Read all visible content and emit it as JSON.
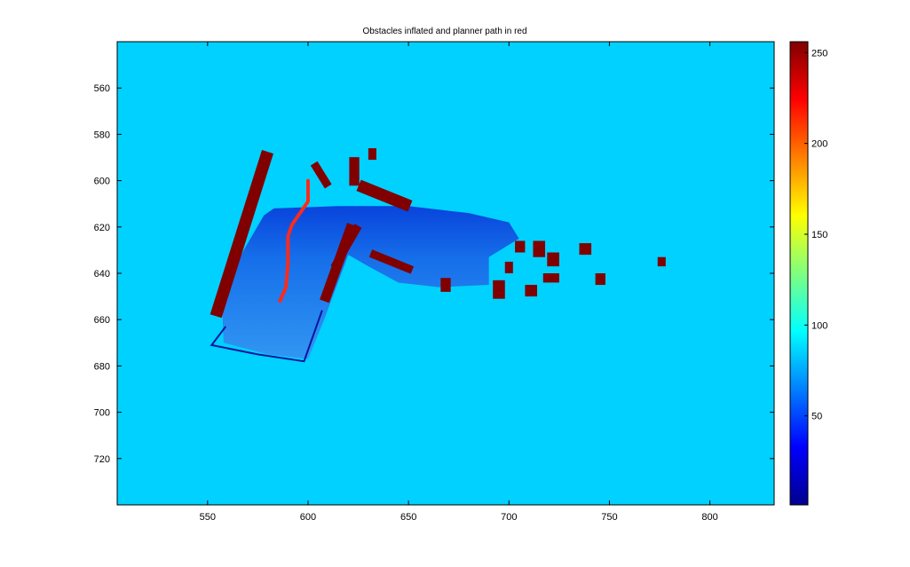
{
  "chart_data": {
    "type": "heatmap",
    "title": "Obstacles inflated and planner path in red",
    "xlabel": "",
    "ylabel": "",
    "xlim": [
      505,
      832
    ],
    "ylim": [
      540,
      740
    ],
    "y_reversed": true,
    "x_ticks": [
      550,
      600,
      650,
      700,
      750,
      800
    ],
    "y_ticks": [
      560,
      580,
      600,
      620,
      640,
      660,
      680,
      700,
      720
    ],
    "colormap": "jet",
    "clim": [
      1,
      256
    ],
    "colorbar_ticks": [
      50,
      100,
      150,
      200,
      250
    ],
    "colorbar_location": "right",
    "background_value": 85,
    "obstacle_value": 256,
    "path_color": "#ff2a1a",
    "regions": {
      "scan_floor": [
        [
          583,
          612
        ],
        [
          615,
          611
        ],
        [
          650,
          611
        ],
        [
          680,
          614
        ],
        [
          700,
          618
        ],
        [
          705,
          625
        ],
        [
          690,
          633
        ],
        [
          690,
          645
        ],
        [
          665,
          646
        ],
        [
          645,
          644
        ],
        [
          630,
          637
        ],
        [
          620,
          632
        ],
        [
          608,
          660
        ],
        [
          600,
          677
        ],
        [
          580,
          675
        ],
        [
          558,
          670
        ],
        [
          557,
          650
        ],
        [
          568,
          630
        ],
        [
          578,
          615
        ]
      ],
      "scan_outline": [
        [
          559,
          663
        ],
        [
          552,
          671
        ],
        [
          575,
          675
        ],
        [
          598,
          678
        ],
        [
          607,
          656
        ]
      ]
    },
    "obstacles": [
      {
        "kind": "strip",
        "points": [
          [
            579,
            590
          ],
          [
            555,
            656
          ]
        ],
        "width": 6
      },
      {
        "kind": "strip",
        "points": [
          [
            621,
            621
          ],
          [
            609,
            650
          ]
        ],
        "width": 5
      },
      {
        "kind": "strip",
        "points": [
          [
            624,
            621
          ],
          [
            614,
            636
          ]
        ],
        "width": 4
      },
      {
        "kind": "strip",
        "points": [
          [
            633,
            632
          ],
          [
            650,
            638
          ]
        ],
        "width": 4
      },
      {
        "kind": "strip",
        "points": [
          [
            623,
            592
          ],
          [
            623,
            600
          ]
        ],
        "width": 5
      },
      {
        "kind": "strip",
        "points": [
          [
            628,
            603
          ],
          [
            648,
            610
          ]
        ],
        "width": 6
      },
      {
        "kind": "strip",
        "points": [
          [
            604,
            594
          ],
          [
            609,
            601
          ]
        ],
        "width": 4
      },
      {
        "kind": "block",
        "x": 630,
        "y": 586,
        "w": 4,
        "h": 5
      },
      {
        "kind": "block",
        "x": 666,
        "y": 642,
        "w": 5,
        "h": 6
      },
      {
        "kind": "block",
        "x": 692,
        "y": 643,
        "w": 6,
        "h": 8
      },
      {
        "kind": "block",
        "x": 698,
        "y": 635,
        "w": 4,
        "h": 5
      },
      {
        "kind": "block",
        "x": 703,
        "y": 626,
        "w": 5,
        "h": 5
      },
      {
        "kind": "block",
        "x": 712,
        "y": 626,
        "w": 6,
        "h": 7
      },
      {
        "kind": "block",
        "x": 719,
        "y": 631,
        "w": 6,
        "h": 6
      },
      {
        "kind": "block",
        "x": 708,
        "y": 645,
        "w": 6,
        "h": 5
      },
      {
        "kind": "block",
        "x": 717,
        "y": 640,
        "w": 8,
        "h": 4
      },
      {
        "kind": "block",
        "x": 735,
        "y": 627,
        "w": 6,
        "h": 5
      },
      {
        "kind": "block",
        "x": 743,
        "y": 640,
        "w": 5,
        "h": 5
      },
      {
        "kind": "block",
        "x": 774,
        "y": 633,
        "w": 4,
        "h": 4
      }
    ],
    "path": [
      [
        600,
        600
      ],
      [
        600,
        609
      ],
      [
        596,
        614
      ],
      [
        592,
        619
      ],
      [
        590,
        624
      ],
      [
        590,
        636
      ],
      [
        589,
        646
      ],
      [
        586,
        652
      ]
    ]
  }
}
